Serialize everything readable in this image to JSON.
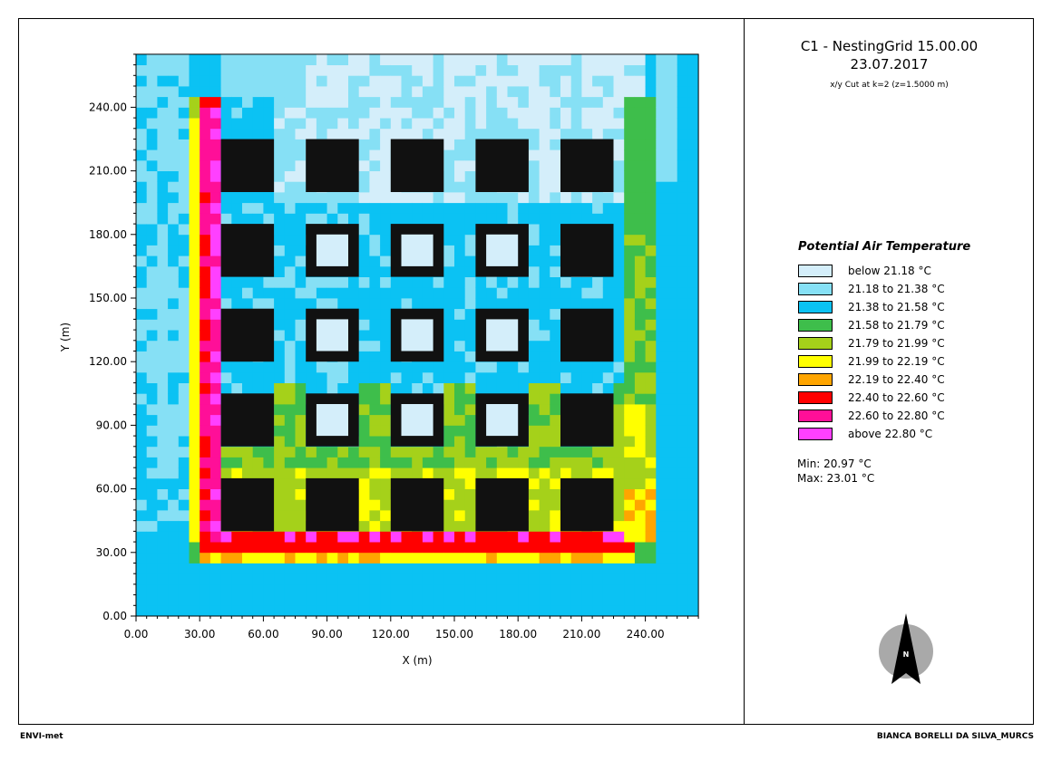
{
  "title": "C1 - NestingGrid 15.00.00",
  "date": "23.07.2017",
  "subtitle": "x/y Cut at k=2 (z=1.5000 m)",
  "footer_left": "ENVI-met",
  "footer_right": "BIANCA BORELLI DA SILVA_MURCS",
  "north_label": "N",
  "stats": {
    "min": "Min: 20.97 °C",
    "max": "Max: 23.01 °C"
  },
  "chart_data": {
    "type": "heatmap",
    "title": "Potential Air Temperature",
    "xlabel": "X (m)",
    "ylabel": "Y (m)",
    "xlim": [
      0,
      265
    ],
    "ylim": [
      0,
      265
    ],
    "xticks": [
      "0.00",
      "30.00",
      "60.00",
      "90.00",
      "120.00",
      "150.00",
      "180.00",
      "210.00",
      "240.00"
    ],
    "yticks": [
      "0.00",
      "30.00",
      "60.00",
      "90.00",
      "120.00",
      "150.00",
      "180.00",
      "210.00",
      "240.00"
    ],
    "cell_size_m": 5,
    "legend": [
      {
        "label": "below 21.18 °C",
        "color": "#d4eefa"
      },
      {
        "label": "21.18 to 21.38 °C",
        "color": "#86e0f5"
      },
      {
        "label": "21.38 to 21.58 °C",
        "color": "#0bc2f3"
      },
      {
        "label": "21.58 to 21.79 °C",
        "color": "#3ebe4b"
      },
      {
        "label": "21.79 to 21.99 °C",
        "color": "#a5d11a"
      },
      {
        "label": "21.99 to 22.19 °C",
        "color": "#ffff00"
      },
      {
        "label": "22.19 to 22.40 °C",
        "color": "#ffa500"
      },
      {
        "label": "22.40 to 22.60 °C",
        "color": "#ff0000"
      },
      {
        "label": "22.60 to 22.80 °C",
        "color": "#ff0f98"
      },
      {
        "label": "above 22.80 °C",
        "color": "#ff40ff"
      }
    ],
    "building_color": "#111111",
    "buildings_x": [
      [
        40,
        65
      ],
      [
        80,
        105
      ],
      [
        120,
        145
      ],
      [
        160,
        185
      ],
      [
        200,
        225
      ]
    ],
    "buildings_y": [
      [
        40,
        65
      ],
      [
        80,
        105
      ],
      [
        120,
        145
      ],
      [
        160,
        185
      ],
      [
        200,
        225
      ]
    ],
    "courtyards": [
      [
        85,
        100,
        85,
        100
      ],
      [
        125,
        140,
        85,
        100
      ],
      [
        165,
        180,
        85,
        100
      ],
      [
        85,
        100,
        125,
        140
      ],
      [
        125,
        140,
        125,
        140
      ],
      [
        165,
        180,
        125,
        140
      ],
      [
        85,
        100,
        165,
        180
      ],
      [
        125,
        140,
        165,
        180
      ],
      [
        165,
        180,
        165,
        180
      ]
    ]
  }
}
